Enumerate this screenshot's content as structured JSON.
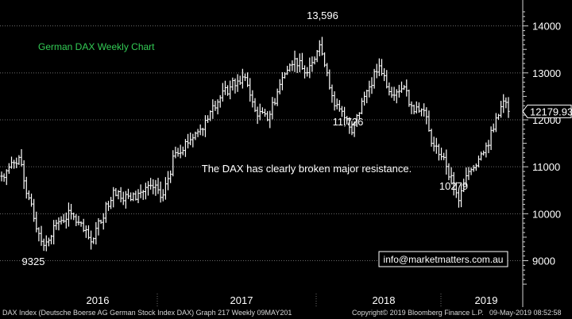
{
  "chart_data": {
    "type": "ohlc",
    "title": "German DAX Weekly Chart",
    "ylim": [
      8400,
      14400
    ],
    "y_ticks": [
      9000,
      10000,
      11000,
      12000,
      13000,
      14000
    ],
    "x_labels": [
      "2016",
      "2017",
      "2018",
      "2019"
    ],
    "grid": true,
    "annotations": {
      "high": "13,596",
      "pullback_low": "11,726",
      "low_2019": "10279",
      "low_2016": "9325",
      "note": "The DAX has clearly broken major resistance.",
      "last_price": "12179.93",
      "website": "info@marketmatters.com.au"
    },
    "anchors": [
      {
        "week": 0,
        "close": 10800
      },
      {
        "week": 7,
        "close": 11200
      },
      {
        "week": 9,
        "close": 10700
      },
      {
        "week": 13,
        "close": 9900
      },
      {
        "week": 17,
        "close": 9325
      },
      {
        "week": 22,
        "close": 9800
      },
      {
        "week": 28,
        "close": 10000
      },
      {
        "week": 36,
        "close": 9400
      },
      {
        "week": 45,
        "close": 10500
      },
      {
        "week": 52,
        "close": 10300
      },
      {
        "week": 60,
        "close": 10600
      },
      {
        "week": 65,
        "close": 10400
      },
      {
        "week": 70,
        "close": 11300
      },
      {
        "week": 80,
        "close": 11800
      },
      {
        "week": 85,
        "close": 12300
      },
      {
        "week": 92,
        "close": 12700
      },
      {
        "week": 98,
        "close": 12900
      },
      {
        "week": 102,
        "close": 12200
      },
      {
        "week": 107,
        "close": 12000
      },
      {
        "week": 113,
        "close": 12900
      },
      {
        "week": 118,
        "close": 13300
      },
      {
        "week": 122,
        "close": 13000
      },
      {
        "week": 128,
        "close": 13596
      },
      {
        "week": 131,
        "close": 13000
      },
      {
        "week": 134,
        "close": 12300
      },
      {
        "week": 139,
        "close": 12000
      },
      {
        "week": 141,
        "close": 11726
      },
      {
        "week": 146,
        "close": 12500
      },
      {
        "week": 152,
        "close": 13150
      },
      {
        "week": 156,
        "close": 12600
      },
      {
        "week": 162,
        "close": 12700
      },
      {
        "week": 165,
        "close": 12300
      },
      {
        "week": 170,
        "close": 12200
      },
      {
        "week": 173,
        "close": 11500
      },
      {
        "week": 178,
        "close": 11200
      },
      {
        "week": 184,
        "close": 10279
      },
      {
        "week": 188,
        "close": 10900
      },
      {
        "week": 194,
        "close": 11300
      },
      {
        "week": 198,
        "close": 11800
      },
      {
        "week": 202,
        "close": 12400
      },
      {
        "week": 204,
        "close": 12180
      }
    ]
  },
  "footer": {
    "left": "DAX Index (Deutsche Boerse AG German Stock Index DAX) Graph 217  Weekly 09MAY201",
    "middle": "Copyright© 2019 Bloomberg Finance L.P.",
    "right": "09-May-2019 08:52:58"
  },
  "colors": {
    "background": "#000000",
    "bars": "#ffffff",
    "grid": "#6b6b6b",
    "title": "#33cc55",
    "text": "#ffffff"
  }
}
